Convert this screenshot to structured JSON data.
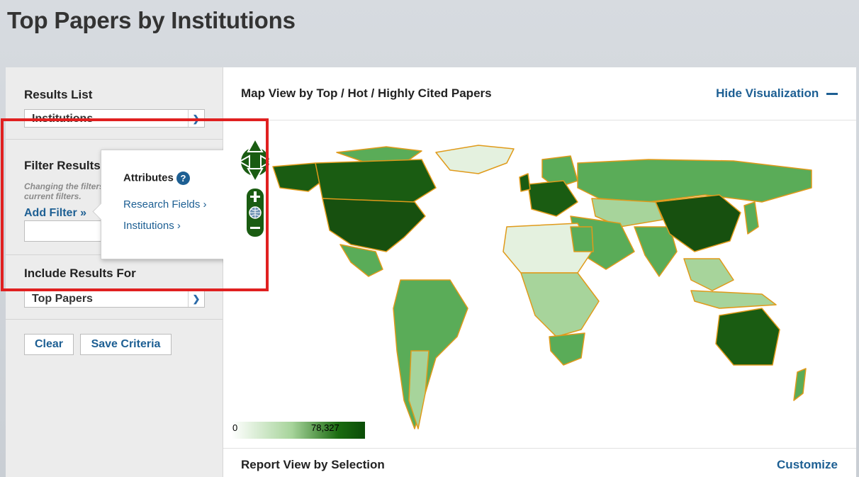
{
  "page": {
    "title": "Top Papers by Institutions"
  },
  "sidebar": {
    "results_list_label": "Results List",
    "results_list_value": "Institutions",
    "filter_label": "Filter Results By",
    "filter_hint_line1": "Changing the filters",
    "filter_hint_line2": "current filters.",
    "add_filter": "Add Filter »",
    "include_label": "Include Results For",
    "include_value": "Top Papers",
    "clear_button": "Clear",
    "save_button": "Save Criteria"
  },
  "popup": {
    "title": "Attributes",
    "help": "?",
    "items": [
      "Research Fields ›",
      "Institutions ›"
    ]
  },
  "main": {
    "map_title": "Map View by Top / Hot / Highly Cited Papers",
    "hide_viz": "Hide Visualization",
    "legend_min": "0",
    "legend_max": "78,327",
    "report_title": "Report View by Selection",
    "customize": "Customize"
  },
  "colors": {
    "accent": "#1d5f93",
    "highlight_box": "#e02020",
    "map_dark": "#1a5c12",
    "map_mid": "#5aac58",
    "map_light": "#a7d49b",
    "map_border": "#e09a1a"
  }
}
